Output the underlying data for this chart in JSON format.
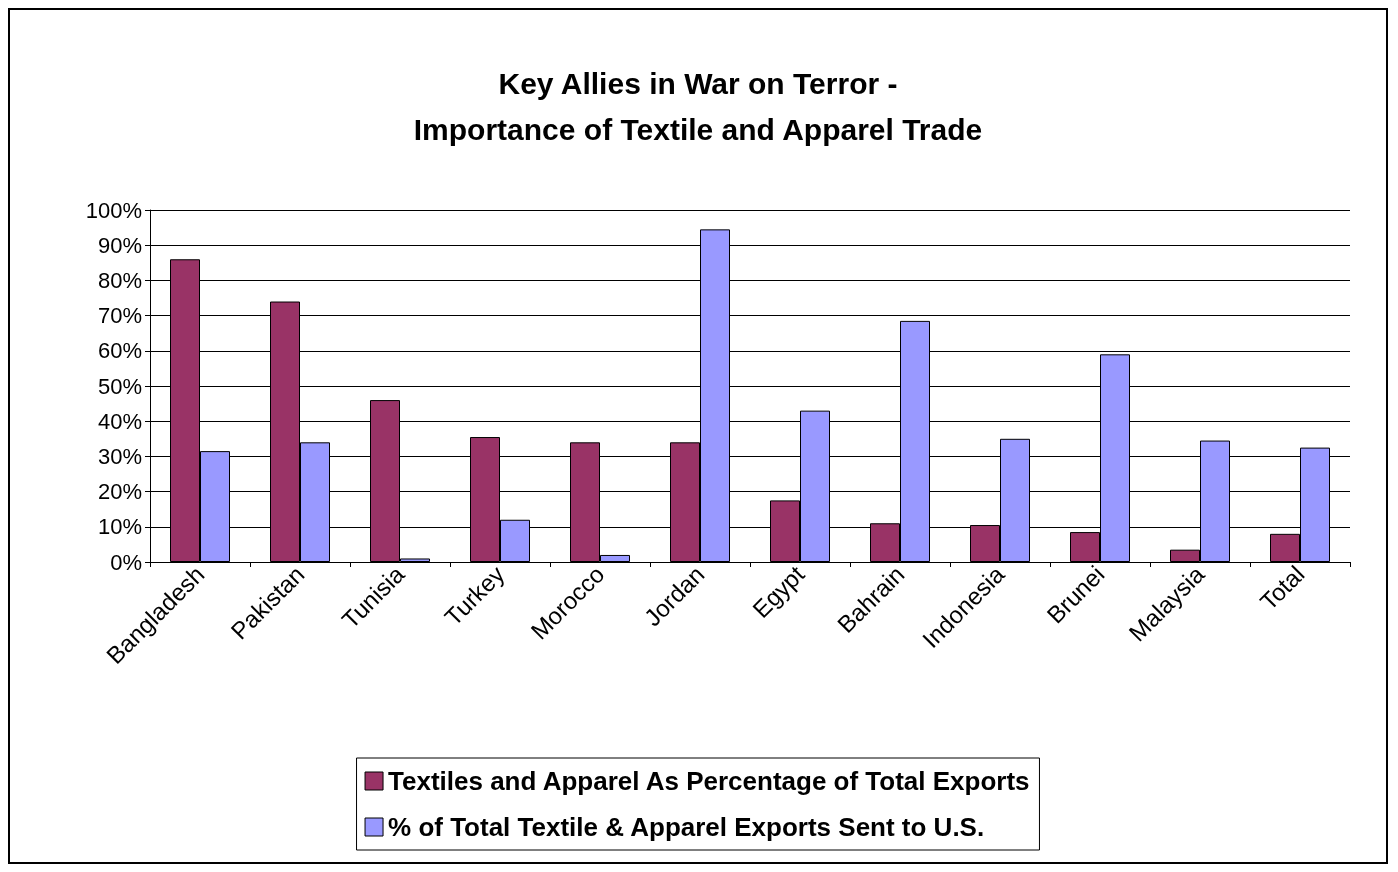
{
  "chart_data": {
    "type": "bar",
    "title": "Key Allies in War on Terror -\nImportance of Textile and Apparel Trade",
    "categories": [
      "Bangladesh",
      "Pakistan",
      "Tunisia",
      "Turkey",
      "Morocco",
      "Jordan",
      "Egypt",
      "Bahrain",
      "Indonesia",
      "Brunei",
      "Malaysia",
      "Total"
    ],
    "series": [
      {
        "name": "Textiles and Apparel As Percentage of Total Exports",
        "color": "#993366",
        "values": [
          86,
          74,
          46,
          35.5,
          34,
          34,
          17.5,
          11,
          10.5,
          8.5,
          3.5,
          8
        ]
      },
      {
        "name": "% of Total Textile & Apparel Exports Sent to U.S.",
        "color": "#9999ff",
        "values": [
          31.5,
          34,
          1,
          12,
          2,
          94.5,
          43,
          68.5,
          35,
          59,
          34.5,
          32.5
        ]
      }
    ],
    "ylim": [
      0,
      100
    ],
    "yticks": [
      {
        "value": 0,
        "label": "0%"
      },
      {
        "value": 10,
        "label": "10%"
      },
      {
        "value": 20,
        "label": "20%"
      },
      {
        "value": 30,
        "label": "30%"
      },
      {
        "value": 40,
        "label": "40%"
      },
      {
        "value": 50,
        "label": "50%"
      },
      {
        "value": 60,
        "label": "60%"
      },
      {
        "value": 70,
        "label": "70%"
      },
      {
        "value": 80,
        "label": "80%"
      },
      {
        "value": 90,
        "label": "90%"
      },
      {
        "value": 100,
        "label": "100%"
      }
    ],
    "grid": "y",
    "legend": "bottom"
  }
}
